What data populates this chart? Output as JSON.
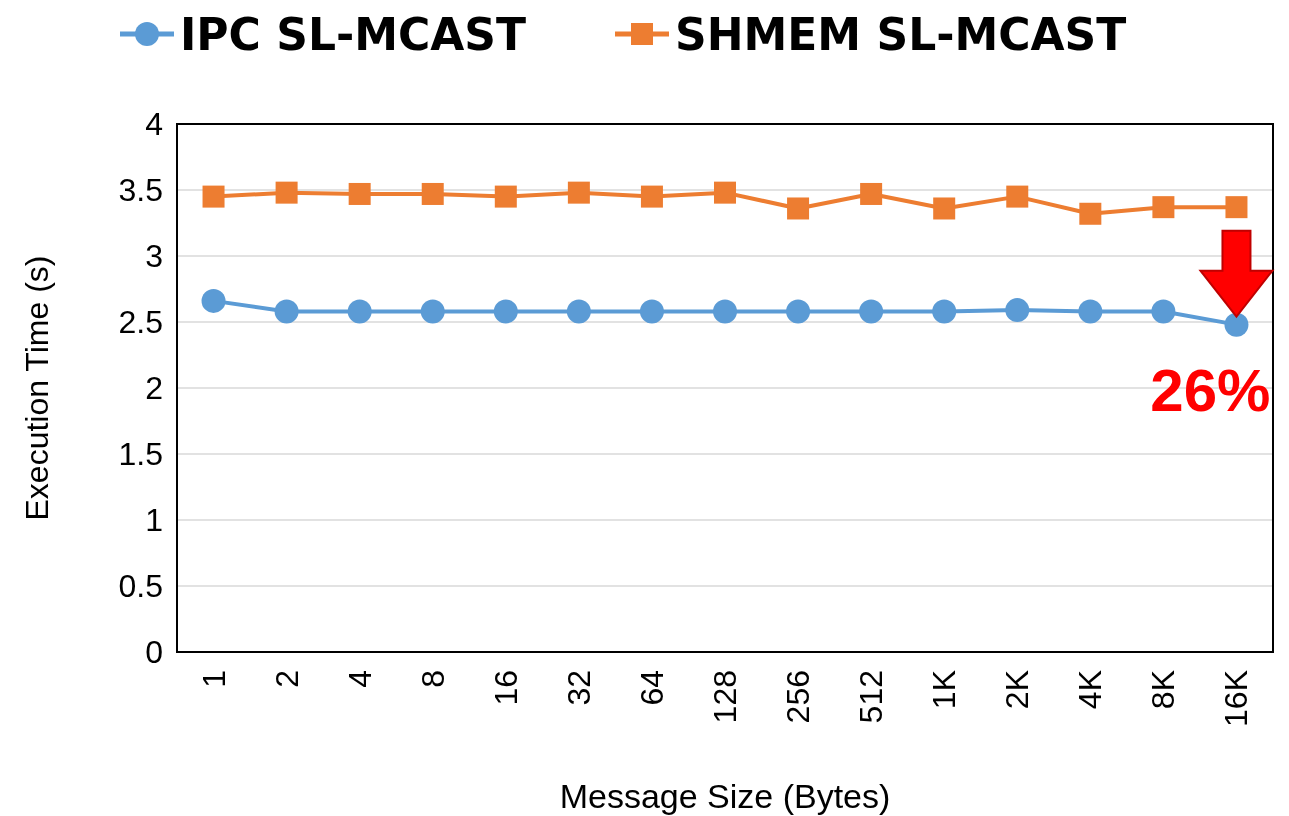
{
  "chart_data": {
    "type": "line",
    "xlabel": "Message Size (Bytes)",
    "ylabel": "Execution Time (s)",
    "categories": [
      "1",
      "2",
      "4",
      "8",
      "16",
      "32",
      "64",
      "128",
      "256",
      "512",
      "1K",
      "2K",
      "4K",
      "8K",
      "16K"
    ],
    "series": [
      {
        "name": "IPC SL-MCAST",
        "color": "#5b9bd5",
        "marker": "circle",
        "values": [
          2.66,
          2.58,
          2.58,
          2.58,
          2.58,
          2.58,
          2.58,
          2.58,
          2.58,
          2.58,
          2.58,
          2.59,
          2.58,
          2.58,
          2.48
        ]
      },
      {
        "name": "SHMEM SL-MCAST",
        "color": "#ed7d31",
        "marker": "square",
        "values": [
          3.45,
          3.48,
          3.47,
          3.47,
          3.45,
          3.48,
          3.45,
          3.48,
          3.36,
          3.47,
          3.36,
          3.45,
          3.32,
          3.37,
          3.37
        ]
      }
    ],
    "ylim": [
      0,
      4
    ],
    "yticks": [
      0,
      0.5,
      1,
      1.5,
      2,
      2.5,
      3,
      3.5,
      4
    ],
    "grid": "y",
    "legend": "top",
    "annotations": [
      "26%"
    ]
  }
}
